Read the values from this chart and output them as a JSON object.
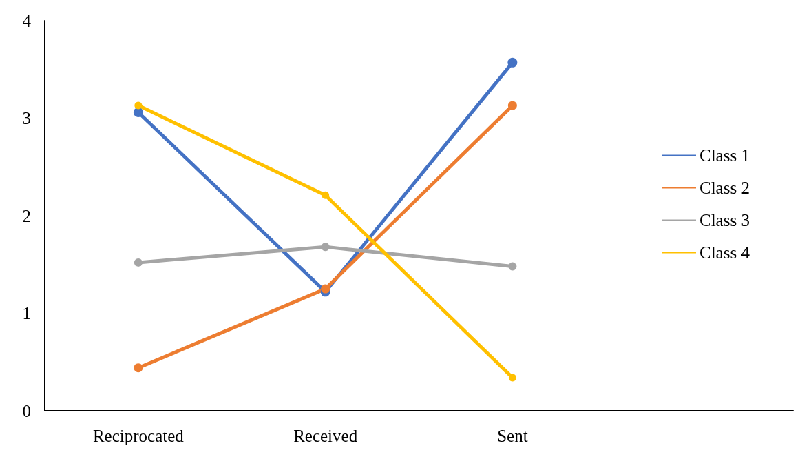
{
  "chart_data": {
    "type": "line",
    "categories": [
      "Reciprocated",
      "Received",
      "Sent",
      null
    ],
    "series": [
      {
        "name": "Class 1",
        "color": "#4472c4",
        "values": [
          3.06,
          1.22,
          3.57,
          null
        ]
      },
      {
        "name": "Class 2",
        "color": "#ed7d31",
        "values": [
          0.44,
          1.25,
          3.13,
          null
        ]
      },
      {
        "name": "Class 3",
        "color": "#a5a5a5",
        "values": [
          1.52,
          1.68,
          1.48,
          null
        ]
      },
      {
        "name": "Class 4",
        "color": "#ffc000",
        "values": [
          3.13,
          2.21,
          0.34,
          null
        ]
      }
    ],
    "ylim": [
      0,
      4
    ],
    "yticks": [
      0,
      1,
      2,
      3,
      4
    ],
    "grid": false,
    "legend": "right",
    "marker": "circle",
    "line_style": "solid"
  }
}
